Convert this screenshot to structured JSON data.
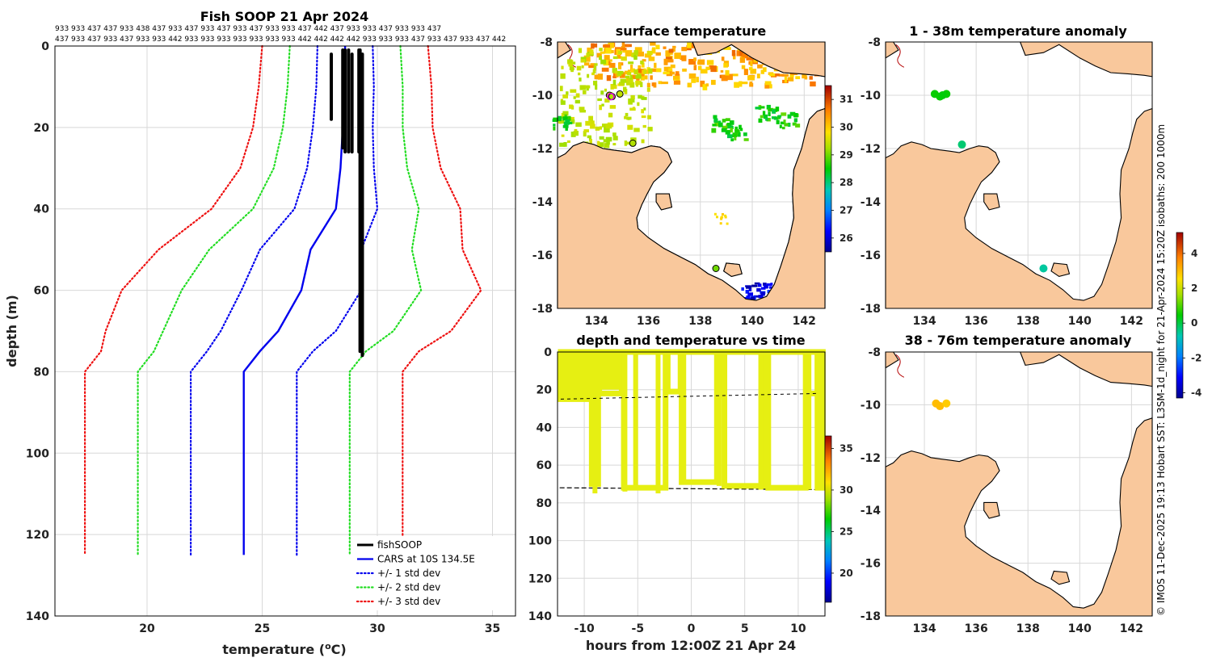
{
  "figure": {
    "credit": "© IMOS 11-Dec-2025 19:13 Hobart SST: L3SM-1d_night for 21-Apr-2024 15:20Z isobaths: 200  1000m"
  },
  "colors": {
    "land": "#f9c89c",
    "coast": "#000000",
    "isobath": "#b40000",
    "soop": "#000000",
    "cars": "#0000ee",
    "std1": "#0000ee",
    "std2": "#22dd22",
    "std3": "#ee1111",
    "depth_track": "#e6ef12"
  },
  "chart_data": [
    {
      "id": "profile",
      "type": "line",
      "title": "Fish SOOP 21 Apr 2024",
      "xlabel": "temperature (",
      "xlabel_sup": "o",
      "xlabel_tail": "C)",
      "ylabel": "depth (m)",
      "xlim": [
        16,
        36
      ],
      "ylim": [
        0,
        140
      ],
      "xticks": [
        20,
        25,
        30,
        35
      ],
      "yticks": [
        0,
        20,
        40,
        60,
        80,
        100,
        120,
        140
      ],
      "vessel_ids_row1": "933 933 437 437 933 438 437 933 437 933 437 933 437 933 933 437 442 437 933 933 437 933 933 437",
      "vessel_ids_row2": "437 933 437 933 437 933 933 442 933 933 933 933 933 933 933 442 442 442 442 933 933 933 437 933 437 933 437 442",
      "legend": [
        {
          "label": "fishSOOP",
          "style": "solid-thick",
          "color": "#000000"
        },
        {
          "label": "CARS at 10S 134.5E",
          "style": "solid",
          "color": "#0000ee"
        },
        {
          "label": "+/- 1 std dev",
          "style": "dotted",
          "color": "#0000ee"
        },
        {
          "label": "+/- 2 std dev",
          "style": "dotted",
          "color": "#22dd22"
        },
        {
          "label": "+/- 3 std dev",
          "style": "dotted",
          "color": "#ee1111"
        }
      ],
      "cars_depth": [
        0,
        10,
        20,
        30,
        40,
        50,
        60,
        70,
        75,
        80,
        100,
        125
      ],
      "cars_temp": [
        28.6,
        28.6,
        28.5,
        28.4,
        28.2,
        27.1,
        26.7,
        25.7,
        24.9,
        24.2,
        24.2,
        24.2
      ],
      "std_sd": [
        1.2,
        1.25,
        1.3,
        1.45,
        1.8,
        2.2,
        2.6,
        2.5,
        2.3,
        2.3,
        2.3,
        2.3
      ],
      "soop_profiles": [
        {
          "t": 28.0,
          "d": [
            2,
            18
          ]
        },
        {
          "t": 28.5,
          "d": [
            1,
            25
          ]
        },
        {
          "t": 28.6,
          "d": [
            1,
            26
          ]
        },
        {
          "t": 28.75,
          "d": [
            1,
            26
          ]
        },
        {
          "t": 28.9,
          "d": [
            2,
            26
          ]
        },
        {
          "t": 29.2,
          "d": [
            1,
            26
          ]
        },
        {
          "t": 29.25,
          "d": [
            1,
            75
          ]
        },
        {
          "t": 29.35,
          "d": [
            2,
            76
          ]
        }
      ]
    },
    {
      "id": "sst_map",
      "type": "heatmap",
      "title": "surface temperature",
      "xlim": [
        132.5,
        142.8
      ],
      "ylim": [
        -18,
        -8
      ],
      "xticks": [
        134,
        136,
        138,
        140,
        142
      ],
      "yticks": [
        -8,
        -10,
        -12,
        -14,
        -16,
        -18
      ],
      "colorbar": {
        "min": 25.5,
        "max": 31.5,
        "ticks": [
          26,
          27,
          28,
          29,
          30,
          31
        ]
      },
      "stations": [
        {
          "lon": 134.5,
          "lat": -10.0,
          "temp": 29.4
        },
        {
          "lon": 134.9,
          "lat": -9.95,
          "temp": 29.4
        },
        {
          "lon": 134.6,
          "lat": -10.05,
          "temp": 29.3
        },
        {
          "lon": 135.4,
          "lat": -11.8,
          "temp": 29.3
        },
        {
          "lon": 138.6,
          "lat": -16.5,
          "temp": 29.0
        }
      ]
    },
    {
      "id": "anom_1_38",
      "type": "scatter",
      "title": "1 - 38m temperature anomaly",
      "xlim": [
        132.5,
        142.8
      ],
      "ylim": [
        -18,
        -8
      ],
      "xticks": [
        134,
        136,
        138,
        140,
        142
      ],
      "yticks": [
        -8,
        -10,
        -12,
        -14,
        -16,
        -18
      ],
      "colorbar": {
        "min": -4.3,
        "max": 5.2,
        "ticks": [
          -4,
          -2,
          0,
          2,
          4
        ]
      },
      "points": [
        {
          "lon": 134.4,
          "lat": -9.95,
          "anom": 0.5
        },
        {
          "lon": 134.6,
          "lat": -10.05,
          "anom": 0.5
        },
        {
          "lon": 134.85,
          "lat": -9.95,
          "anom": 0.5
        },
        {
          "lon": 134.7,
          "lat": -10.0,
          "anom": 0.4
        },
        {
          "lon": 135.45,
          "lat": -11.85,
          "anom": -0.3
        },
        {
          "lon": 138.6,
          "lat": -16.5,
          "anom": -0.6
        }
      ]
    },
    {
      "id": "anom_38_76",
      "type": "scatter",
      "title": "38 - 76m temperature anomaly",
      "xlim": [
        132.5,
        142.8
      ],
      "ylim": [
        -18,
        -8
      ],
      "xticks": [
        134,
        136,
        138,
        140,
        142
      ],
      "yticks": [
        -8,
        -10,
        -12,
        -14,
        -16,
        -18
      ],
      "points": [
        {
          "lon": 134.45,
          "lat": -9.95,
          "anom": 3.0
        },
        {
          "lon": 134.6,
          "lat": -10.05,
          "anom": 3.0
        },
        {
          "lon": 134.85,
          "lat": -9.95,
          "anom": 2.8
        }
      ]
    },
    {
      "id": "depth_time",
      "type": "scatter",
      "title": "depth and temperature vs time",
      "xlabel": "hours from 12:00Z 21 Apr 24",
      "xlim": [
        -12.5,
        12.5
      ],
      "ylim": [
        0,
        140
      ],
      "xticks": [
        -10,
        -5,
        0,
        5,
        10
      ],
      "yticks": [
        0,
        20,
        40,
        60,
        80,
        100,
        120,
        140
      ],
      "colorbar": {
        "min": 16.5,
        "max": 36.5,
        "ticks": [
          20,
          25,
          30,
          35
        ]
      },
      "segments": [
        {
          "h0": -12.2,
          "h1": -9.4,
          "dmax": 25
        },
        {
          "h0": -9.3,
          "h1": -8.7,
          "dmax": 70
        },
        {
          "h0": -8.6,
          "h1": -6.5,
          "dmax": 22
        },
        {
          "h0": -6.3,
          "h1": -2.4,
          "dmax": 72
        },
        {
          "h0": -2.2,
          "h1": -1.0,
          "dmax": 21
        },
        {
          "h0": -0.9,
          "h1": 2.4,
          "dmax": 69
        },
        {
          "h0": 2.7,
          "h1": 2.9,
          "dmax": 23
        },
        {
          "h0": 3.1,
          "h1": 6.8,
          "dmax": 71
        },
        {
          "h0": 6.8,
          "h1": 7.0,
          "dmax": 22
        },
        {
          "h0": 7.2,
          "h1": 10.7,
          "dmax": 72
        },
        {
          "h0": 10.9,
          "h1": 11.8,
          "dmax": 22
        },
        {
          "h0": 11.8,
          "h1": 12.3,
          "dmax": 72
        }
      ],
      "spikes": [
        {
          "h": -9.0,
          "d": 75
        },
        {
          "h": -6.2,
          "d": 74
        },
        {
          "h": -5.2,
          "d": 71
        },
        {
          "h": -3.1,
          "d": 75
        },
        {
          "h": -0.7,
          "d": 70
        },
        {
          "h": 2.6,
          "d": 71
        },
        {
          "h": 6.5,
          "d": 73
        },
        {
          "h": 7.1,
          "d": 72
        },
        {
          "h": 11.0,
          "d": 73
        }
      ]
    }
  ]
}
